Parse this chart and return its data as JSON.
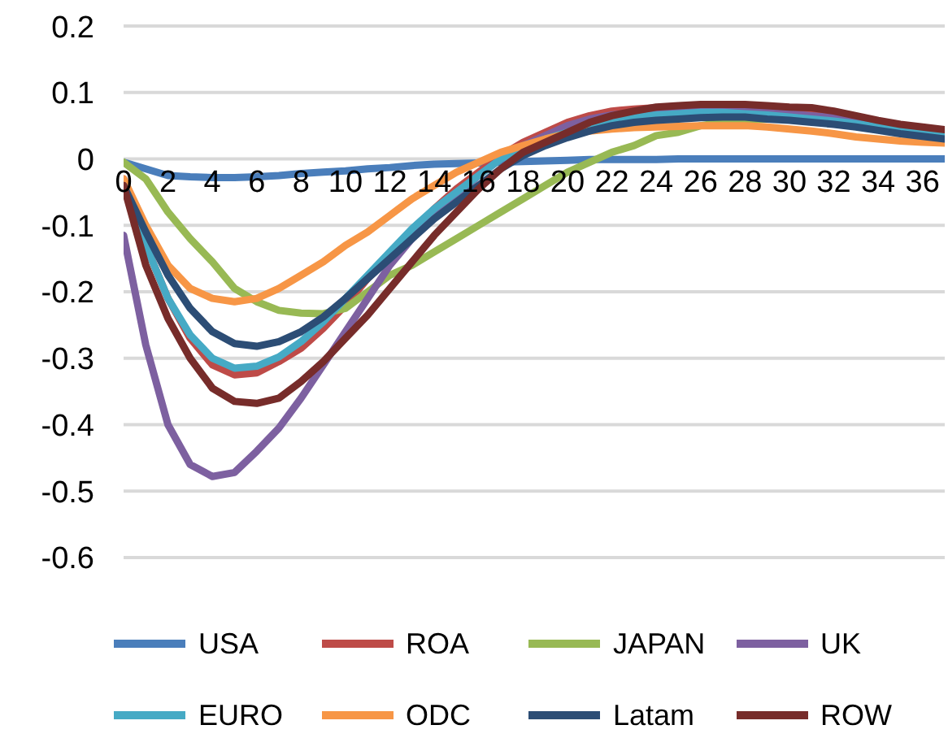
{
  "chart_data": {
    "type": "line",
    "x": [
      0,
      1,
      2,
      3,
      4,
      5,
      6,
      7,
      8,
      9,
      10,
      11,
      12,
      13,
      14,
      15,
      16,
      17,
      18,
      19,
      20,
      21,
      22,
      23,
      24,
      25,
      26,
      27,
      28,
      29,
      30,
      31,
      32,
      33,
      34,
      35,
      36,
      37
    ],
    "xlim": [
      0,
      37
    ],
    "xticks": [
      0,
      2,
      4,
      6,
      8,
      10,
      12,
      14,
      16,
      18,
      20,
      22,
      24,
      26,
      28,
      30,
      32,
      34,
      36
    ],
    "ylim": [
      -0.6,
      0.2
    ],
    "yticks": [
      -0.6,
      -0.5,
      -0.4,
      -0.3,
      -0.2,
      -0.1,
      0,
      0.1,
      0.2
    ],
    "grid": "y",
    "legend": "bottom",
    "marker": "none",
    "line_style": "solid",
    "series": [
      {
        "name": "USA",
        "color": "#4a7ebb",
        "values": [
          -0.005,
          -0.015,
          -0.025,
          -0.027,
          -0.028,
          -0.028,
          -0.027,
          -0.025,
          -0.022,
          -0.02,
          -0.018,
          -0.015,
          -0.013,
          -0.01,
          -0.008,
          -0.007,
          -0.006,
          -0.005,
          -0.004,
          -0.003,
          -0.002,
          -0.001,
          -0.001,
          -0.001,
          -0.001,
          0,
          0,
          0,
          0,
          0,
          0,
          0,
          0,
          0,
          0,
          0,
          0,
          0
        ]
      },
      {
        "name": "ROA",
        "color": "#be4b48",
        "values": [
          -0.03,
          -0.13,
          -0.21,
          -0.27,
          -0.31,
          -0.325,
          -0.322,
          -0.305,
          -0.285,
          -0.255,
          -0.22,
          -0.18,
          -0.145,
          null,
          -0.075,
          -0.045,
          -0.02,
          0.005,
          0.025,
          0.04,
          0.055,
          0.065,
          0.072,
          0.075,
          0.077,
          0.078,
          0.078,
          0.077,
          0.075,
          0.072,
          0.07,
          0.067,
          0.063,
          0.058,
          0.052,
          0.047,
          0.043,
          0.04
        ]
      },
      {
        "name": "JAPAN",
        "color": "#98b954",
        "values": [
          -0.005,
          -0.03,
          -0.08,
          -0.12,
          -0.155,
          -0.195,
          -0.215,
          -0.228,
          -0.232,
          -0.233,
          -0.225,
          -0.2,
          -0.175,
          -0.16,
          -0.14,
          -0.12,
          -0.1,
          -0.08,
          -0.06,
          -0.04,
          -0.02,
          -0.005,
          0.01,
          0.02,
          0.035,
          0.04,
          0.05,
          0.055,
          0.058,
          0.06,
          0.06,
          null,
          null,
          null,
          null,
          null,
          null,
          null
        ]
      },
      {
        "name": "UK",
        "color": "#7d60a0",
        "values": [
          -0.115,
          -0.28,
          -0.4,
          -0.46,
          -0.478,
          -0.472,
          -0.44,
          -0.405,
          -0.36,
          -0.31,
          -0.26,
          -0.21,
          -0.16,
          -0.12,
          -0.085,
          -0.055,
          -0.025,
          0,
          0.02,
          0.035,
          0.05,
          0.06,
          0.066,
          0.07,
          0.072,
          0.074,
          0.075,
          0.075,
          0.073,
          0.07,
          0.068,
          0.065,
          0.062,
          0.058,
          0.052,
          0.047,
          0.043,
          0.04
        ]
      },
      {
        "name": "EURO",
        "color": "#46aac5",
        "values": [
          -0.035,
          -0.13,
          -0.21,
          -0.265,
          -0.3,
          -0.315,
          -0.312,
          -0.298,
          -0.275,
          -0.245,
          -0.21,
          -0.175,
          -0.14,
          -0.105,
          -0.075,
          -0.05,
          -0.025,
          0,
          0.015,
          0.03,
          0.04,
          0.05,
          0.058,
          0.063,
          0.066,
          0.068,
          0.07,
          0.07,
          0.068,
          0.066,
          0.063,
          0.06,
          0.057,
          0.053,
          0.048,
          0.043,
          0.04,
          0.036
        ]
      },
      {
        "name": "ODC",
        "color": "#f79646",
        "values": [
          -0.03,
          -0.1,
          -0.16,
          -0.195,
          -0.21,
          -0.215,
          -0.21,
          -0.195,
          -0.175,
          -0.155,
          -0.13,
          -0.11,
          -0.085,
          -0.06,
          -0.04,
          -0.02,
          -0.005,
          0.01,
          0.02,
          0.03,
          0.038,
          0.042,
          0.045,
          0.047,
          0.048,
          0.049,
          0.05,
          0.05,
          0.05,
          0.048,
          0.045,
          0.042,
          0.038,
          0.033,
          0.03,
          0.027,
          0.025,
          0.024
        ]
      },
      {
        "name": "Latam",
        "color": "#2c4d75",
        "values": [
          -0.04,
          -0.11,
          -0.175,
          -0.225,
          -0.26,
          -0.278,
          -0.282,
          -0.275,
          -0.26,
          -0.238,
          -0.21,
          -0.18,
          -0.15,
          -0.12,
          -0.09,
          -0.065,
          -0.04,
          -0.015,
          0.005,
          0.02,
          0.032,
          0.042,
          0.05,
          0.055,
          0.058,
          0.06,
          0.062,
          0.063,
          0.063,
          0.06,
          0.058,
          0.055,
          0.052,
          0.048,
          0.043,
          0.038,
          0.034,
          0.03
        ]
      },
      {
        "name": "ROW",
        "color": "#772c2a",
        "values": [
          -0.04,
          -0.16,
          -0.24,
          -0.3,
          -0.345,
          -0.365,
          -0.368,
          -0.36,
          -0.335,
          -0.305,
          -0.27,
          -0.235,
          -0.195,
          -0.155,
          -0.115,
          -0.08,
          -0.045,
          -0.015,
          0.01,
          0.025,
          0.04,
          0.055,
          0.065,
          0.072,
          0.078,
          0.08,
          0.082,
          0.082,
          0.082,
          0.08,
          0.078,
          0.077,
          0.072,
          0.065,
          0.058,
          0.052,
          0.048,
          0.044
        ]
      }
    ]
  }
}
